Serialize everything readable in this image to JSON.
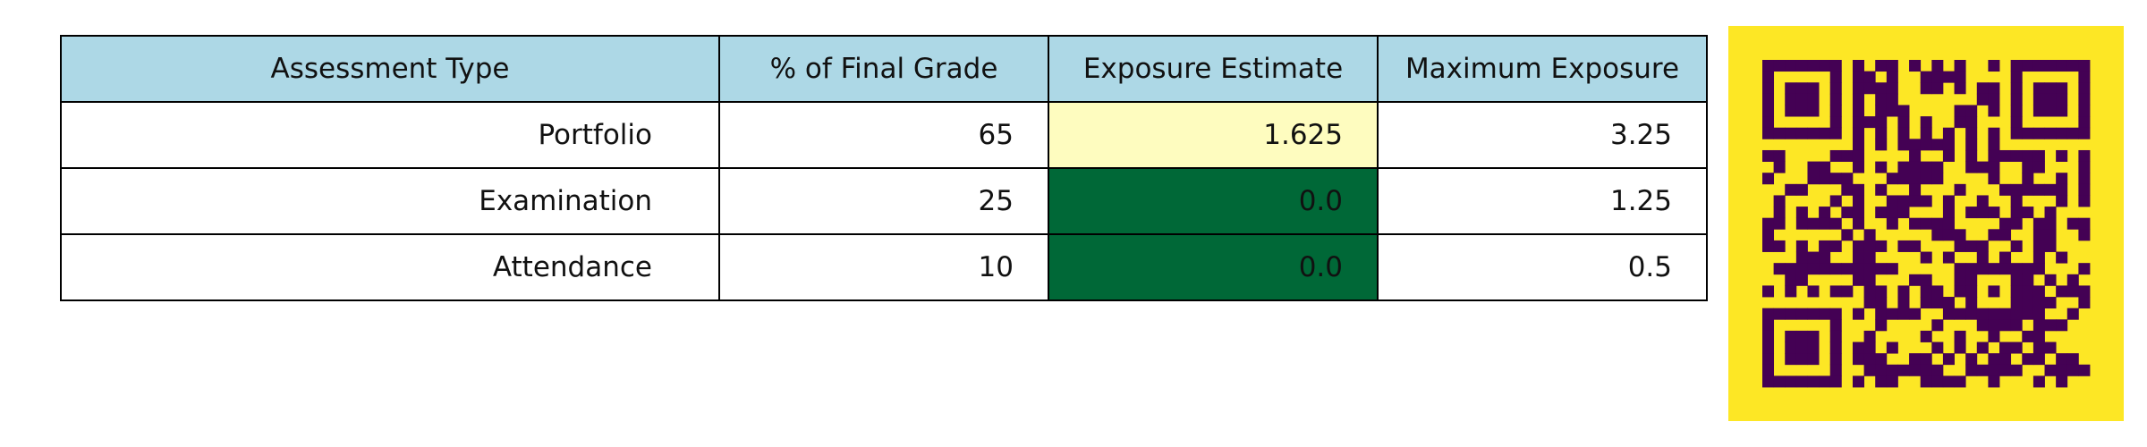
{
  "chart_data": {
    "type": "table",
    "columns": [
      "Assessment Type",
      "% of Final Grade",
      "Exposure Estimate",
      "Maximum Exposure"
    ],
    "rows": [
      [
        "Portfolio",
        "65",
        "1.625",
        "3.25"
      ],
      [
        "Examination",
        "25",
        "0.0",
        "1.25"
      ],
      [
        "Attendance",
        "10",
        "0.0",
        "0.5"
      ]
    ],
    "header_color": "#add8e6",
    "cell_color": "#ffffff",
    "exposure_colors": [
      "#fefcbf",
      "#006837",
      "#006837"
    ]
  },
  "qr_code": {
    "foreground": "#440154",
    "background": "#fde725",
    "modules": 29
  }
}
